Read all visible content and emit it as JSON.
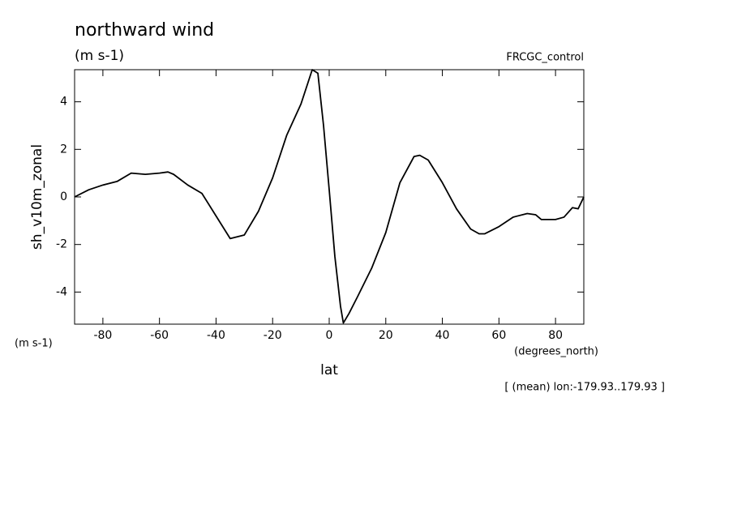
{
  "chart_data": {
    "type": "line",
    "title": "northward wind",
    "subtitle": "(m s-1)",
    "run_label": "FRCGC_control",
    "y_label": "sh_v10m_zonal",
    "y_units": "(m s-1)",
    "x_label": "lat",
    "x_units": "(degrees_north)",
    "annotation": "[ (mean) lon:-179.93..179.93 ]",
    "x": [
      -90,
      -85,
      -80,
      -75,
      -70,
      -65,
      -60,
      -57,
      -55,
      -50,
      -45,
      -40,
      -35,
      -30,
      -25,
      -20,
      -15,
      -10,
      -6,
      -4,
      -2,
      0,
      2,
      4,
      5,
      7,
      10,
      15,
      20,
      25,
      30,
      32,
      35,
      40,
      45,
      50,
      53,
      55,
      60,
      65,
      70,
      73,
      75,
      80,
      83,
      86,
      88,
      90
    ],
    "series": [
      {
        "name": "sh_v10m_zonal",
        "color": "#000000",
        "values": [
          0.0,
          0.3,
          0.5,
          0.65,
          1.0,
          0.95,
          1.0,
          1.05,
          0.95,
          0.5,
          0.15,
          -0.8,
          -1.75,
          -1.6,
          -0.6,
          0.8,
          2.6,
          3.9,
          5.35,
          5.2,
          3.0,
          0.3,
          -2.5,
          -4.6,
          -5.3,
          -4.9,
          -4.2,
          -3.0,
          -1.5,
          0.6,
          1.7,
          1.75,
          1.55,
          0.6,
          -0.5,
          -1.35,
          -1.55,
          -1.55,
          -1.25,
          -0.85,
          -0.7,
          -0.75,
          -0.95,
          -0.95,
          -0.85,
          -0.45,
          -0.5,
          0.0
        ]
      }
    ],
    "xlim": [
      -90,
      90
    ],
    "ylim": [
      -5.35,
      5.35
    ],
    "xticks": [
      -80,
      -60,
      -40,
      -20,
      0,
      20,
      40,
      60,
      80
    ],
    "yticks": [
      -4,
      -2,
      0,
      2,
      4
    ]
  }
}
